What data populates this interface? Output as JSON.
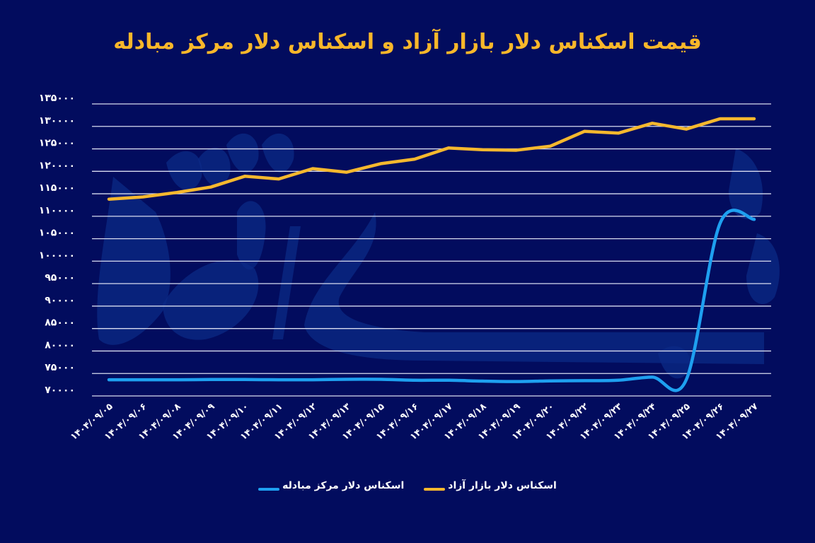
{
  "title": "قیمت اسکناس دلار بازار آزاد و اسکناس دلار مرکز مبادله",
  "colors": {
    "background": "#020c5e",
    "title": "#f9b72a",
    "free_market": "#f5b82e",
    "exchange_center": "#1ea0f0",
    "grid": "#d8dcf0",
    "watermark": "#0b2a86"
  },
  "legend": [
    {
      "label": "اسکناس دلار بازار آزاد",
      "color": "#f5b82e"
    },
    {
      "label": "اسکناس دلار مرکز مبادله",
      "color": "#1ea0f0"
    }
  ],
  "chart_data": {
    "type": "line",
    "title": "قیمت اسکناس دلار بازار آزاد و اسکناس دلار مرکز مبادله",
    "xlabel": "",
    "ylabel": "",
    "ylim": [
      70000,
      135000
    ],
    "yticks": [
      70000,
      75000,
      80000,
      85000,
      90000,
      95000,
      100000,
      105000,
      110000,
      115000,
      120000,
      125000,
      130000,
      135000
    ],
    "ytick_labels": [
      "۷۰۰۰۰",
      "۷۵۰۰۰",
      "۸۰۰۰۰",
      "۸۵۰۰۰",
      "۹۰۰۰۰",
      "۹۵۰۰۰",
      "۱۰۰۰۰۰",
      "۱۰۵۰۰۰",
      "۱۱۰۰۰۰",
      "۱۱۵۰۰۰",
      "۱۲۰۰۰۰",
      "۱۲۵۰۰۰",
      "۱۳۰۰۰۰",
      "۱۳۵۰۰۰"
    ],
    "grid": true,
    "legend_position": "bottom",
    "categories": [
      "1404/09/05",
      "1404/09/06",
      "1404/09/08",
      "1404/09/09",
      "1404/09/10",
      "1404/09/11",
      "1404/09/12",
      "1404/09/13",
      "1404/09/15",
      "1404/09/16",
      "1404/09/17",
      "1404/09/18",
      "1404/09/19",
      "1404/09/20",
      "1404/09/22",
      "1404/09/23",
      "1404/09/24",
      "1404/09/25",
      "1404/09/26",
      "1404/09/27"
    ],
    "category_labels": [
      "۱۴۰۴/۰۹/۰۵",
      "۱۴۰۴/۰۹/۰۶",
      "۱۴۰۴/۰۹/۰۸",
      "۱۴۰۴/۰۹/۰۹",
      "۱۴۰۴/۰۹/۱۰",
      "۱۴۰۴/۰۹/۱۱",
      "۱۴۰۴/۰۹/۱۲",
      "۱۴۰۴/۰۹/۱۳",
      "۱۴۰۴/۰۹/۱۵",
      "۱۴۰۴/۰۹/۱۶",
      "۱۴۰۴/۰۹/۱۷",
      "۱۴۰۴/۰۹/۱۸",
      "۱۴۰۴/۰۹/۱۹",
      "۱۴۰۴/۰۹/۲۰",
      "۱۴۰۴/۰۹/۲۲",
      "۱۴۰۴/۰۹/۲۳",
      "۱۴۰۴/۰۹/۲۴",
      "۱۴۰۴/۰۹/۲۵",
      "۱۴۰۴/۰۹/۲۶",
      "۱۴۰۴/۰۹/۲۷"
    ],
    "series": [
      {
        "name": "اسکناس دلار بازار آزاد",
        "color": "#f5b82e",
        "smooth": false,
        "values": [
          113800,
          114300,
          115300,
          116500,
          118900,
          118300,
          120600,
          119800,
          121700,
          122700,
          125200,
          124800,
          124700,
          125600,
          128900,
          128500,
          130700,
          129400,
          131700,
          131700
        ]
      },
      {
        "name": "اسکناس دلار مرکز مبادله",
        "color": "#1ea0f0",
        "smooth": true,
        "values": [
          73600,
          73600,
          73600,
          73650,
          73650,
          73600,
          73600,
          73700,
          73700,
          73500,
          73500,
          73300,
          73200,
          73350,
          73400,
          73500,
          74200,
          73600,
          108500,
          109300
        ]
      }
    ]
  }
}
